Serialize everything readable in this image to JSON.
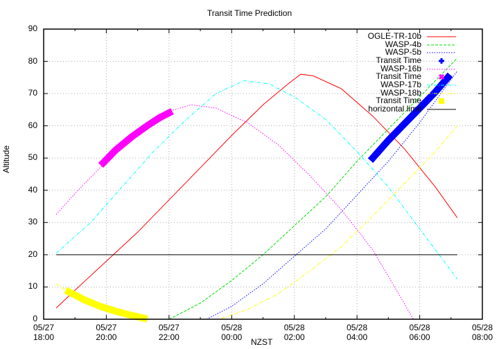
{
  "chart_data": {
    "type": "line",
    "title": "Transit Time Prediction",
    "xlabel": "NZST",
    "ylabel": "Altitude",
    "ylim": [
      0,
      90
    ],
    "xlim_hours_since_0527_1800": [
      0,
      14
    ],
    "yticks": [
      0,
      10,
      20,
      30,
      40,
      50,
      60,
      70,
      80,
      90
    ],
    "xticks": [
      {
        "date": "05/27",
        "time": "18:00",
        "h": 0
      },
      {
        "date": "05/27",
        "time": "20:00",
        "h": 2
      },
      {
        "date": "05/27",
        "time": "22:00",
        "h": 4
      },
      {
        "date": "05/28",
        "time": "00:00",
        "h": 6
      },
      {
        "date": "05/28",
        "time": "02:00",
        "h": 8
      },
      {
        "date": "05/28",
        "time": "04:00",
        "h": 10
      },
      {
        "date": "05/28",
        "time": "06:00",
        "h": 12
      },
      {
        "date": "05/28",
        "time": "08:00",
        "h": 14
      }
    ],
    "grid": true,
    "legend_position": "top-right",
    "series": [
      {
        "name": "OGLE-TR-10b",
        "color": "#ff0000",
        "style": "solid",
        "points": [
          [
            0.4,
            3.5
          ],
          [
            1,
            9
          ],
          [
            2,
            18
          ],
          [
            3,
            27
          ],
          [
            4,
            37
          ],
          [
            5,
            47
          ],
          [
            6,
            57
          ],
          [
            7,
            66.5
          ],
          [
            7.8,
            73
          ],
          [
            8.2,
            76
          ],
          [
            8.6,
            75.5
          ],
          [
            9.5,
            71.5
          ],
          [
            10.5,
            63
          ],
          [
            11.5,
            53
          ],
          [
            12.5,
            41
          ],
          [
            13.2,
            31.5
          ]
        ]
      },
      {
        "name": "WASP-4b",
        "color": "#00dd00",
        "style": "dashed",
        "points": [
          [
            4.0,
            0
          ],
          [
            5,
            5
          ],
          [
            6,
            12
          ],
          [
            7,
            20
          ],
          [
            8,
            29
          ],
          [
            9,
            38
          ],
          [
            10,
            49
          ],
          [
            11,
            59
          ],
          [
            12,
            69
          ],
          [
            13.2,
            81
          ]
        ]
      },
      {
        "name": "WASP-5b",
        "color": "#0000ff",
        "style": "dotted",
        "points": [
          [
            5.2,
            0
          ],
          [
            6,
            4
          ],
          [
            7,
            11
          ],
          [
            8,
            19.5
          ],
          [
            9,
            28
          ],
          [
            10,
            38.5
          ],
          [
            11,
            49
          ],
          [
            12,
            61
          ],
          [
            13.2,
            77
          ]
        ]
      },
      {
        "name": "WASP-16b",
        "color": "#ff00ff",
        "style": "dotted",
        "points": [
          [
            0.4,
            32.5
          ],
          [
            1,
            39
          ],
          [
            2,
            49
          ],
          [
            3,
            58
          ],
          [
            4,
            64.5
          ],
          [
            4.7,
            66.5
          ],
          [
            5.5,
            65.5
          ],
          [
            6.5,
            61
          ],
          [
            7.5,
            54
          ],
          [
            8.5,
            44.5
          ],
          [
            9.5,
            34
          ],
          [
            10.5,
            21.5
          ],
          [
            11.2,
            10
          ],
          [
            11.8,
            0
          ]
        ]
      },
      {
        "name": "WASP-17b",
        "color": "#00ffff",
        "style": "dashdot",
        "points": [
          [
            0.4,
            20.5
          ],
          [
            1.5,
            30
          ],
          [
            2.5,
            41
          ],
          [
            3.5,
            52
          ],
          [
            4.5,
            61.5
          ],
          [
            5.5,
            70
          ],
          [
            6.4,
            74
          ],
          [
            7.2,
            73
          ],
          [
            8,
            69
          ],
          [
            9,
            62
          ],
          [
            10,
            52
          ],
          [
            11,
            41
          ],
          [
            12,
            28
          ],
          [
            13.2,
            12.5
          ]
        ]
      },
      {
        "name": "WASP-18b",
        "color": "#ffff00",
        "style": "dashdot",
        "points": [
          [
            0.4,
            11
          ],
          [
            1,
            7
          ],
          [
            2,
            3.5
          ],
          [
            3.2,
            0
          ],
          [
            5.6,
            0
          ],
          [
            6.5,
            3
          ],
          [
            7.5,
            8
          ],
          [
            8.5,
            15
          ],
          [
            9.5,
            22.5
          ],
          [
            10.5,
            32
          ],
          [
            11.5,
            42
          ],
          [
            12.5,
            52
          ],
          [
            13.2,
            60
          ]
        ]
      },
      {
        "name": "horizontal limit",
        "color": "#000000",
        "style": "solid",
        "points": [
          [
            0.4,
            20
          ],
          [
            13.2,
            20
          ]
        ]
      }
    ],
    "transit_segments": [
      {
        "name": "Transit Time",
        "target": "WASP-5b",
        "color": "#0000ff",
        "marker": "plus",
        "points": [
          [
            10.5,
            50
          ],
          [
            11,
            55.5
          ],
          [
            11.5,
            60.5
          ],
          [
            12,
            65.5
          ],
          [
            12.5,
            70.5
          ],
          [
            12.9,
            75
          ]
        ]
      },
      {
        "name": "Transit Time",
        "target": "WASP-16b",
        "color": "#ff00ff",
        "marker": "cross",
        "points": [
          [
            1.9,
            48.5
          ],
          [
            2.3,
            52.5
          ],
          [
            2.8,
            56.5
          ],
          [
            3.3,
            60
          ],
          [
            3.7,
            62.5
          ],
          [
            4.0,
            64
          ]
        ]
      },
      {
        "name": "Transit Time",
        "target": "WASP-18b",
        "color": "#ffff00",
        "marker": "square",
        "points": [
          [
            0.8,
            8.5
          ],
          [
            1.3,
            6
          ],
          [
            1.8,
            4
          ],
          [
            2.3,
            2.5
          ],
          [
            2.8,
            1.2
          ],
          [
            3.2,
            0.3
          ]
        ]
      }
    ]
  },
  "legend": [
    {
      "label": "OGLE-TR-10b",
      "color": "#ff0000",
      "key": "solid"
    },
    {
      "label": "WASP-4b",
      "color": "#00dd00",
      "key": "dashed"
    },
    {
      "label": "WASP-5b",
      "color": "#0000ff",
      "key": "dotted"
    },
    {
      "label": "Transit Time",
      "color": "#0000ff",
      "key": "plus"
    },
    {
      "label": "WASP-16b",
      "color": "#ff00ff",
      "key": "dotted"
    },
    {
      "label": "Transit Time",
      "color": "#ff00ff",
      "key": "cross"
    },
    {
      "label": "WASP-17b",
      "color": "#00ffff",
      "key": "dashdot"
    },
    {
      "label": "WASP-18b",
      "color": "#ffff00",
      "key": "dashdot"
    },
    {
      "label": "Transit Time",
      "color": "#ffff00",
      "key": "square"
    },
    {
      "label": "horizontal limit",
      "color": "#000000",
      "key": "solid"
    }
  ]
}
